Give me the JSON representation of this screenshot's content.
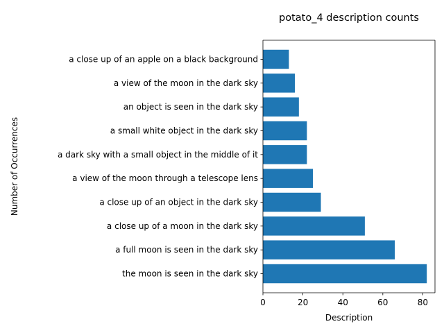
{
  "chart_data": {
    "type": "bar",
    "orientation": "horizontal",
    "title": "potato_4 description counts",
    "xlabel": "Description",
    "ylabel": "Number of Occurrences",
    "categories": [
      "the moon is seen in the dark sky",
      "a full moon is seen in the dark sky",
      "a close up of a moon in the dark sky",
      "a close up of an object in the dark sky",
      "a view of the moon through a telescope lens",
      "a dark sky with a small object in the middle of it",
      "a small white object in the dark sky",
      "an object is seen in the dark sky",
      "a view of the moon in the dark sky",
      "a close up of an apple on a black background"
    ],
    "values": [
      82,
      66,
      51,
      29,
      25,
      22,
      22,
      18,
      16,
      13
    ],
    "xlim": [
      0,
      86.1
    ],
    "xticks": [
      0,
      20,
      40,
      60,
      80
    ],
    "grid": false,
    "bar_color": "#1f77b4"
  }
}
